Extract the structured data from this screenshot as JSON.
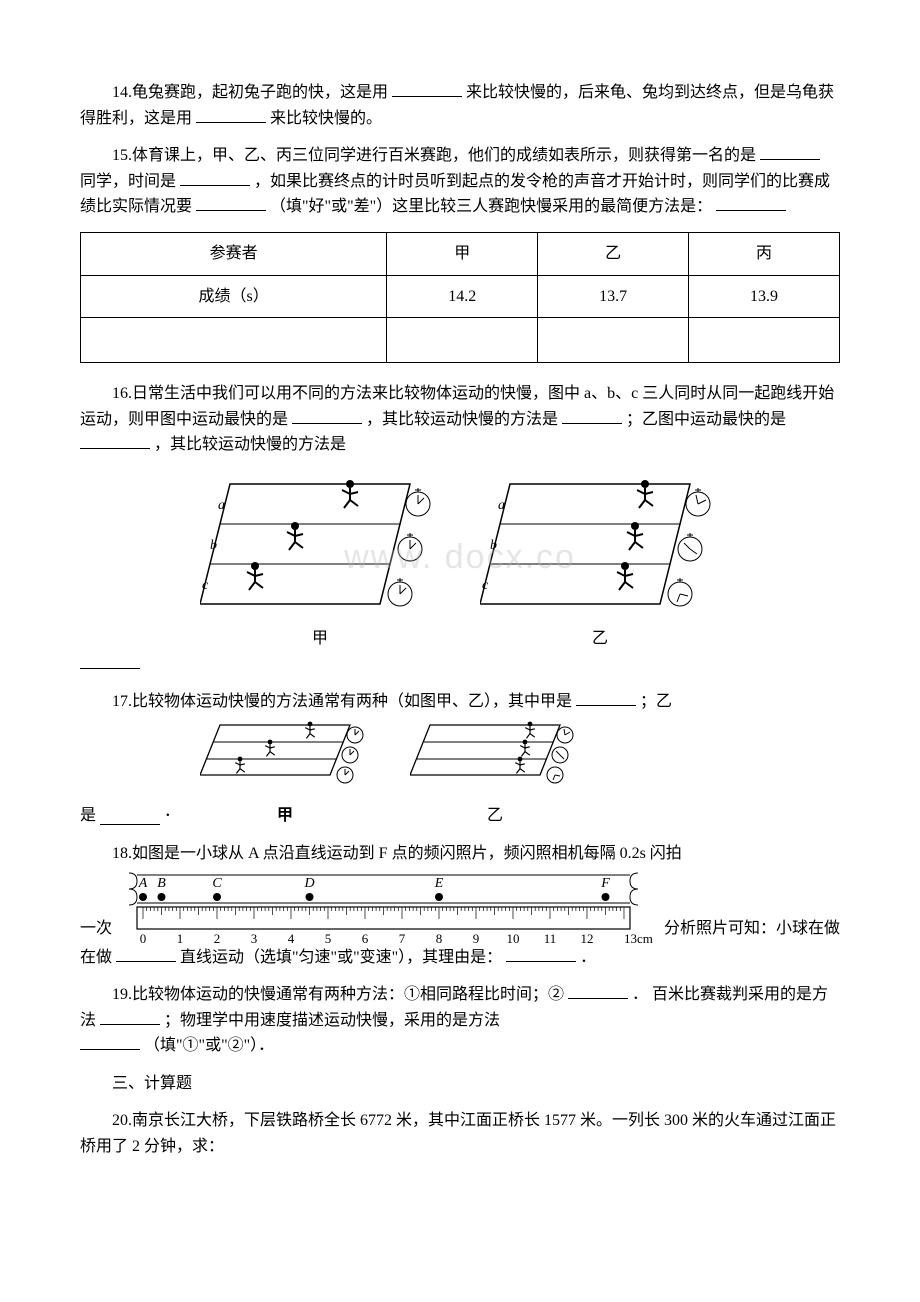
{
  "q14": {
    "text_a": "14.龟兔赛跑，起初兔子跑的快，这是用",
    "text_b": "来比较快慢的，后来龟、兔均到达终点，但是乌龟获得胜利，这是用",
    "text_c": "来比较快慢的。"
  },
  "q15": {
    "text_a": "15.体育课上，甲、乙、丙三位同学进行百米赛跑，他们的成绩如表所示，则获得第一名的是 ",
    "text_b": "同学，时间是 ",
    "text_c": " ，如果比赛终点的计时员听到起点的发令枪的声音才开始计时，则同学们的比赛成绩比实际情况要 ",
    "text_d": "（填\"好\"或\"差\"）这里比较三人赛跑快慢采用的最简便方法是："
  },
  "table15": {
    "headers": [
      "参赛者",
      "甲",
      "乙",
      "丙"
    ],
    "row_label": "成绩（s）",
    "values": [
      "14.2",
      "13.7",
      "13.9"
    ]
  },
  "q16": {
    "text_a": "16.日常生活中我们可以用不同的方法来比较物体运动的快慢，图中 a、b、c 三人同时从同一起跑线开始运动，则甲图中运动最快的是    ",
    "text_b": " ，其比较运动快慢的方法是 ",
    "text_c": "；乙图中运动最快的是    ",
    "text_d": " ，其比较运动快慢的方法是",
    "label_jia": "甲",
    "label_yi": "乙"
  },
  "q17": {
    "text_a": "17.比较物体运动快慢的方法通常有两种（如图甲、乙），其中甲是",
    "text_b": "；乙",
    "text_c": "是",
    "text_d": " ．",
    "label_jia": "甲",
    "label_yi": "乙"
  },
  "q18": {
    "text_a": "18.如图是一小球从 A 点沿直线运动到 F 点的频闪照片，频闪照相机每隔 0.2s 闪拍",
    "text_b": "一次",
    "text_c": "分析照片可知：小球在做",
    "text_d": "直线运动（选填\"匀速\"或\"变速\"），其理由是：",
    "text_e": "．",
    "ruler": {
      "points": [
        "A",
        "B",
        "C",
        "D",
        "E",
        "F"
      ],
      "positions_cm": [
        0,
        0.5,
        2,
        4.5,
        8,
        12.5
      ],
      "ticks": [
        "0",
        "1",
        "2",
        "3",
        "4",
        "5",
        "6",
        "7",
        "8",
        "9",
        "10",
        "11",
        "12",
        "13cm"
      ]
    }
  },
  "q19": {
    "text_a": "19.比较物体运动的快慢通常有两种方法：①相同路程比时间；②",
    "text_b": "． 百米比赛裁判采用的是方法",
    "text_c": "；物理学中用速度描述运动快慢，采用的是方法",
    "text_d": "（填\"①\"或\"②\"）．"
  },
  "section3": "三、计算题",
  "q20": {
    "text_a": "20.南京长江大桥，下层铁路桥全长 6772 米，其中江面正桥长 1577 米。一列长 300 米的火车通过江面正桥用了 2 分钟，求："
  },
  "colors": {
    "text": "#000000",
    "bg": "#ffffff",
    "watermark": "rgba(180,180,180,0.35)"
  }
}
